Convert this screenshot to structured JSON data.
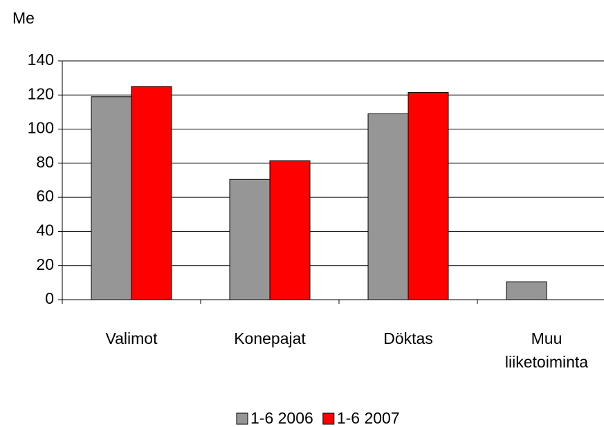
{
  "chart_data": {
    "type": "bar",
    "y_label": "Me",
    "categories": [
      "Valimot",
      "Konepajat",
      "Döktas",
      "Muu liiketoiminta"
    ],
    "series": [
      {
        "name": "1-6 2006",
        "color": "#969696",
        "values": [
          119,
          70.5,
          109,
          10.5
        ]
      },
      {
        "name": "1-6 2007",
        "color": "#ff0000",
        "values": [
          125,
          81.5,
          121.5,
          null
        ]
      }
    ],
    "ylim": [
      0,
      140
    ],
    "yticks": [
      0,
      20,
      40,
      60,
      80,
      100,
      120,
      140
    ],
    "grid": true,
    "legend": "bottom"
  }
}
